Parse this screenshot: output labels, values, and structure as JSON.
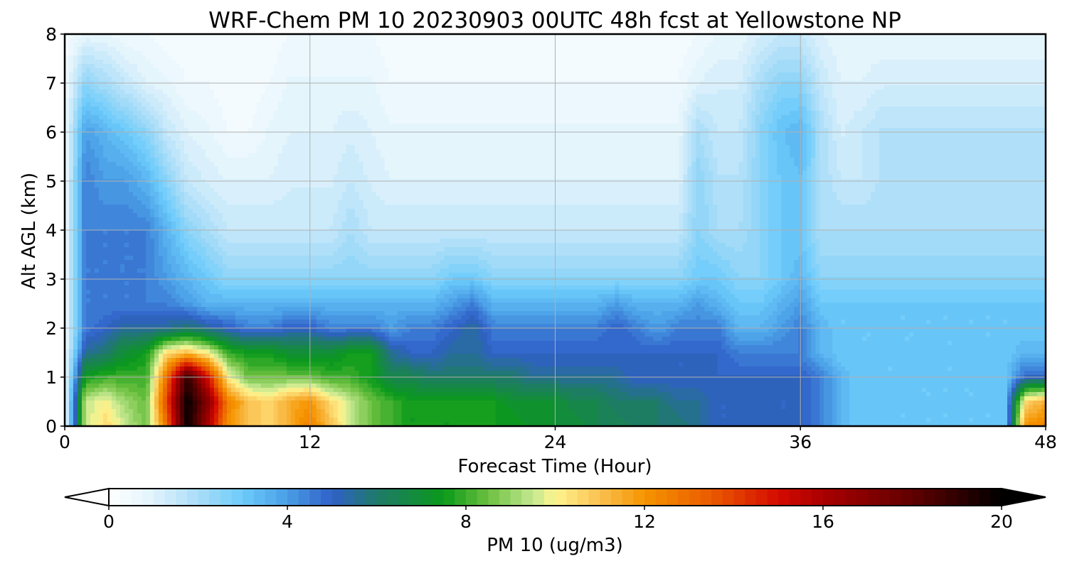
{
  "chart_data": {
    "type": "heatmap",
    "title": "WRF-Chem PM 10  20230903 00UTC 48h fcst at Yellowstone NP",
    "xlabel": "Forecast Time (Hour)",
    "ylabel": "Alt AGL (km)",
    "xlim": [
      0,
      48
    ],
    "ylim": [
      0,
      8
    ],
    "xticks": [
      0,
      12,
      24,
      36,
      48
    ],
    "yticks": [
      0,
      1,
      2,
      3,
      4,
      5,
      6,
      7,
      8
    ],
    "grid": true,
    "colorbar": {
      "label": "PM 10  (ug/m3)",
      "range": [
        0,
        20
      ],
      "ticks": [
        0,
        4,
        8,
        12,
        16,
        20
      ],
      "extend": "both",
      "levels": 80,
      "colormap_stops": [
        {
          "v": 0,
          "c": "#ffffff"
        },
        {
          "v": 1,
          "c": "#e0f3fc"
        },
        {
          "v": 2.2,
          "c": "#9ed9f8"
        },
        {
          "v": 3,
          "c": "#6ccbfa"
        },
        {
          "v": 4,
          "c": "#4a9ee6"
        },
        {
          "v": 5,
          "c": "#3060c8"
        },
        {
          "v": 6,
          "c": "#1f7a6a"
        },
        {
          "v": 7.5,
          "c": "#0a9a1a"
        },
        {
          "v": 8.5,
          "c": "#6cc040"
        },
        {
          "v": 9.5,
          "c": "#c4e890"
        },
        {
          "v": 10,
          "c": "#fff590"
        },
        {
          "v": 11,
          "c": "#fac050"
        },
        {
          "v": 12,
          "c": "#f59400"
        },
        {
          "v": 13.5,
          "c": "#ea5a00"
        },
        {
          "v": 15,
          "c": "#d40a00"
        },
        {
          "v": 16,
          "c": "#aa0000"
        },
        {
          "v": 18,
          "c": "#600000"
        },
        {
          "v": 20,
          "c": "#000000"
        }
      ]
    },
    "field": {
      "x": [
        0,
        1,
        2,
        3,
        4,
        5,
        6,
        7,
        8,
        9,
        10,
        11,
        12,
        13,
        14,
        15,
        16,
        17,
        18,
        19,
        20,
        21,
        22,
        23,
        24,
        25,
        26,
        27,
        28,
        29,
        30,
        31,
        32,
        33,
        34,
        35,
        36,
        37,
        38,
        39,
        40,
        41,
        42,
        43,
        44,
        45,
        46,
        47,
        48
      ],
      "y": [
        0,
        0.5,
        1,
        1.5,
        2,
        2.5,
        3,
        4,
        5,
        6,
        7,
        8
      ],
      "z": [
        [
          0.5,
          9.5,
          10.5,
          9.5,
          8.5,
          13,
          20,
          16,
          12,
          11,
          10.5,
          11.5,
          12.5,
          11,
          9.5,
          8.5,
          8,
          7.5,
          7.5,
          7.5,
          7.5,
          7.5,
          7.5,
          7,
          7,
          7,
          6.5,
          6.5,
          6,
          6,
          6,
          5.5,
          5,
          5,
          5,
          5,
          5,
          4.5,
          3.5,
          3,
          3,
          3,
          3,
          3,
          3,
          3,
          3,
          12,
          12.5
        ],
        [
          0.5,
          9.5,
          10,
          9,
          8.5,
          14,
          20,
          17,
          12.5,
          11,
          10.5,
          11.5,
          12,
          10.5,
          9.5,
          8.5,
          8,
          7.5,
          7.5,
          7.5,
          7.5,
          7.5,
          7,
          7,
          7,
          6.5,
          6.5,
          6,
          6,
          6,
          5.5,
          5.5,
          5,
          5,
          5,
          5,
          5,
          4.5,
          3.5,
          3,
          3,
          3,
          3,
          3,
          3,
          3,
          3,
          10.5,
          11.5
        ],
        [
          0.5,
          7.5,
          8,
          8,
          8,
          13,
          19,
          15,
          10,
          8.5,
          8.5,
          8.5,
          8.5,
          8,
          8,
          7.5,
          6.5,
          6.5,
          6,
          6,
          6,
          6,
          6,
          5.5,
          5.5,
          5.5,
          5.5,
          5.5,
          5,
          5,
          5,
          5,
          5,
          5,
          5,
          5,
          5,
          4.5,
          3.5,
          3,
          3,
          3,
          3,
          3,
          3,
          3,
          3,
          5,
          5
        ],
        [
          0.5,
          5.5,
          6,
          7,
          7.5,
          10.5,
          11,
          10,
          8,
          7.5,
          7.5,
          7,
          7,
          7,
          7.5,
          7.5,
          5.5,
          5,
          5,
          5.5,
          5.5,
          5,
          5,
          5,
          5,
          5,
          5,
          5,
          5,
          5,
          5,
          5,
          5,
          4.5,
          4.5,
          4.5,
          4.5,
          3.5,
          3,
          3,
          3,
          3,
          3,
          3,
          3,
          3,
          3,
          3.5,
          3.5
        ],
        [
          0.5,
          4.5,
          5,
          5.5,
          5.5,
          5.5,
          6,
          5.5,
          5,
          4.5,
          4.5,
          5,
          5,
          4.5,
          4.5,
          4.5,
          4,
          4.5,
          4.5,
          5,
          5.5,
          4.5,
          4.5,
          4.5,
          4.5,
          4.5,
          4.5,
          5,
          4.5,
          4,
          4.5,
          4.5,
          4.5,
          3.5,
          3.5,
          4,
          4.5,
          3.5,
          3,
          3,
          3,
          3,
          3,
          3,
          3,
          3,
          3,
          3,
          3
        ],
        [
          0.5,
          4.5,
          4.5,
          4.5,
          4.5,
          4.5,
          4,
          3.5,
          3.5,
          3.5,
          3.5,
          3.5,
          3.5,
          3.5,
          3.5,
          3.5,
          3.5,
          3.5,
          3.5,
          4,
          4.5,
          3.5,
          3.5,
          3.5,
          3.5,
          3.5,
          3.5,
          4,
          3.5,
          3.5,
          3.5,
          4,
          3.5,
          3,
          3,
          3.5,
          4,
          3,
          3,
          3,
          3,
          3,
          3,
          3,
          3,
          3,
          3,
          3,
          3
        ],
        [
          0.5,
          4.5,
          4.5,
          4.5,
          4.5,
          4,
          3.5,
          3,
          2.5,
          2.5,
          2.5,
          2.5,
          2.5,
          2.5,
          2.5,
          2.5,
          2.5,
          2.5,
          2.5,
          3,
          3,
          2.5,
          2.5,
          2.5,
          2.5,
          2.5,
          2.5,
          2.5,
          2.5,
          2.5,
          2.5,
          3,
          3,
          2.5,
          2.5,
          3,
          3.5,
          2.5,
          2.5,
          2.5,
          2.5,
          2.5,
          2.5,
          2.5,
          2.5,
          2.5,
          2.5,
          2.5,
          2.5
        ],
        [
          0.5,
          4.5,
          4.5,
          4.5,
          4.5,
          3.5,
          2.5,
          2,
          1.5,
          1.5,
          1.5,
          1.5,
          1.5,
          1.5,
          2,
          1.5,
          1.5,
          1.5,
          1.5,
          1.5,
          1.5,
          1.5,
          1.5,
          1.5,
          1.5,
          1.5,
          1.5,
          1.5,
          1.5,
          1.5,
          1.5,
          2.5,
          2,
          2,
          2.5,
          3,
          3,
          2,
          2,
          2,
          2,
          2,
          2,
          2,
          2,
          2,
          2,
          2,
          2
        ],
        [
          0.5,
          4.5,
          4,
          4,
          3.5,
          2.5,
          1.5,
          1.2,
          1,
          1,
          1,
          1.2,
          1.2,
          1.2,
          1.5,
          1.2,
          1,
          1,
          1,
          1,
          1,
          1,
          1,
          1,
          1,
          1,
          1,
          1,
          1,
          1,
          1,
          2.5,
          1.8,
          1.8,
          2.5,
          3,
          3.2,
          2,
          1.5,
          1.5,
          1.8,
          1.8,
          1.8,
          1.8,
          1.8,
          1.8,
          1.8,
          1.8,
          1.8
        ],
        [
          0.5,
          4,
          3.5,
          3,
          2.5,
          1.5,
          1,
          0.8,
          0.5,
          0.5,
          0.8,
          1,
          1,
          1,
          1.2,
          1,
          0.8,
          0.8,
          0.8,
          0.8,
          0.8,
          0.8,
          0.8,
          0.8,
          0.8,
          0.8,
          0.8,
          0.8,
          0.8,
          0.8,
          0.8,
          2,
          1.5,
          1.5,
          2.5,
          3.2,
          3.5,
          2,
          1.2,
          1.5,
          1.8,
          1.8,
          1.8,
          1.8,
          1.8,
          1.8,
          1.8,
          1.8,
          1.8
        ],
        [
          0.5,
          2.5,
          2,
          1.5,
          1,
          0.8,
          0.5,
          0.5,
          0.3,
          0.3,
          0.5,
          0.8,
          0.8,
          0.8,
          0.8,
          0.8,
          0.5,
          0.5,
          0.5,
          0.5,
          0.5,
          0.5,
          0.5,
          0.5,
          0.5,
          0.5,
          0.5,
          0.5,
          0.5,
          0.5,
          0.5,
          1,
          1.2,
          1.2,
          2,
          2.5,
          2.5,
          1.5,
          1,
          1,
          1.2,
          1.2,
          1.2,
          1.2,
          1.2,
          1.2,
          1.2,
          1.2,
          1.2
        ],
        [
          0.3,
          0.8,
          0.8,
          0.5,
          0.5,
          0.3,
          0.3,
          0.3,
          0.3,
          0.3,
          0.3,
          0.5,
          0.5,
          0.5,
          0.5,
          0.5,
          0.3,
          0.3,
          0.3,
          0.3,
          0.3,
          0.3,
          0.3,
          0.3,
          0.3,
          0.3,
          0.3,
          0.3,
          0.3,
          0.3,
          0.3,
          0.5,
          0.8,
          0.8,
          1.2,
          1.5,
          1.5,
          1,
          0.8,
          0.8,
          0.8,
          0.8,
          0.8,
          0.8,
          0.8,
          0.8,
          0.8,
          0.8,
          0.8
        ]
      ]
    }
  }
}
